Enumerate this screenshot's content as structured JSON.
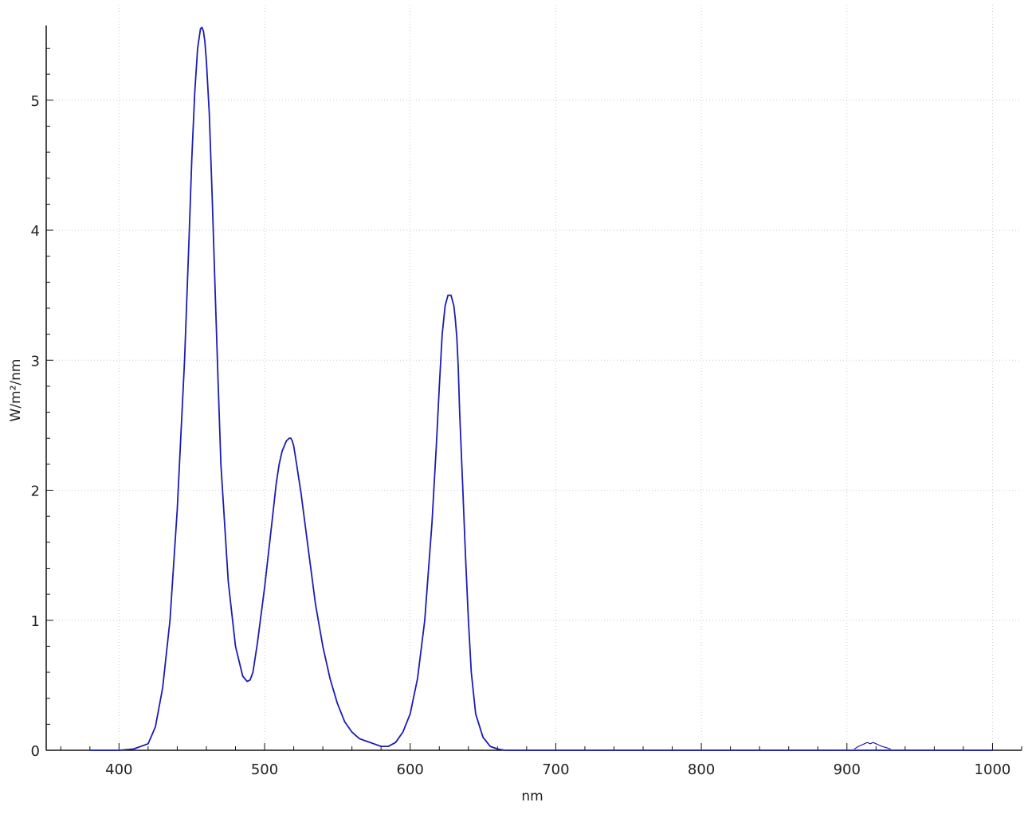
{
  "chart_data": {
    "type": "line",
    "title": "",
    "xlabel": "nm",
    "ylabel": "W/m²/nm",
    "xlim": [
      350,
      1020
    ],
    "ylim": [
      0,
      5.55
    ],
    "xticks": [
      400,
      500,
      600,
      700,
      800,
      900,
      1000
    ],
    "yticks": [
      0,
      1,
      2,
      3,
      4,
      5
    ],
    "xtick_labels": [
      "400",
      "500",
      "600",
      "700",
      "800",
      "900",
      "1000"
    ],
    "ytick_labels": [
      "0",
      "1",
      "2",
      "3",
      "4",
      "5"
    ],
    "grid": true,
    "legend": "none",
    "line_color": "#1c1cb4",
    "series": [
      {
        "x": [
          380,
          400,
          410,
          420,
          425,
          430,
          435,
          440,
          445,
          448,
          450,
          452,
          454,
          456,
          457,
          458,
          459,
          460,
          462,
          464,
          466,
          468,
          470,
          475,
          480,
          485,
          488,
          490,
          492,
          495,
          500,
          505,
          508,
          510,
          512,
          515,
          517,
          518,
          519,
          520,
          522,
          525,
          530,
          535,
          540,
          545,
          550,
          555,
          560,
          565,
          570,
          575,
          580,
          585,
          590,
          595,
          600,
          605,
          610,
          615,
          618,
          620,
          622,
          624,
          626,
          628,
          630,
          631,
          632,
          633,
          634,
          636,
          638,
          640,
          642,
          645,
          650,
          655,
          660,
          665,
          670,
          680,
          700,
          750,
          800,
          850,
          900,
          950,
          1000
        ],
        "y": [
          0,
          0,
          0.01,
          0.05,
          0.18,
          0.48,
          1.0,
          1.85,
          3.0,
          3.9,
          4.55,
          5.05,
          5.4,
          5.55,
          5.56,
          5.53,
          5.45,
          5.3,
          4.9,
          4.25,
          3.55,
          2.85,
          2.2,
          1.3,
          0.8,
          0.57,
          0.53,
          0.54,
          0.6,
          0.82,
          1.25,
          1.75,
          2.05,
          2.2,
          2.3,
          2.38,
          2.4,
          2.4,
          2.38,
          2.34,
          2.2,
          1.98,
          1.55,
          1.12,
          0.8,
          0.55,
          0.36,
          0.22,
          0.14,
          0.09,
          0.07,
          0.05,
          0.03,
          0.03,
          0.06,
          0.14,
          0.28,
          0.55,
          1.0,
          1.75,
          2.35,
          2.8,
          3.2,
          3.42,
          3.5,
          3.5,
          3.42,
          3.32,
          3.18,
          2.95,
          2.6,
          2.05,
          1.5,
          1.0,
          0.6,
          0.28,
          0.1,
          0.03,
          0.01,
          0,
          0,
          0,
          0,
          0,
          0,
          0,
          0,
          0,
          0
        ]
      },
      {
        "x": [
          905,
          908,
          910,
          912,
          914,
          916,
          918,
          920,
          922,
          924,
          927,
          930
        ],
        "y": [
          0.01,
          0.03,
          0.04,
          0.05,
          0.06,
          0.05,
          0.06,
          0.05,
          0.04,
          0.03,
          0.02,
          0.01
        ]
      }
    ]
  }
}
